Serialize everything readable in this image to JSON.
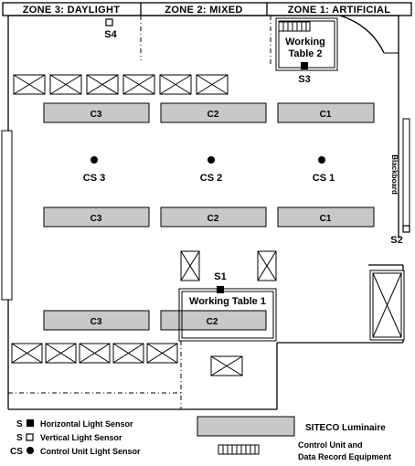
{
  "zones": {
    "zone3": "ZONE 3: DAYLIGHT",
    "zone2": "ZONE 2: MIXED",
    "zone1": "ZONE 1: ARTIFICIAL"
  },
  "luminaires": {
    "row1": [
      "C3",
      "C2",
      "C1"
    ],
    "row2": [
      "C3",
      "C2",
      "C1"
    ],
    "row3": [
      "C3",
      "C2"
    ]
  },
  "control_sensors": [
    "CS 3",
    "CS 2",
    "CS 1"
  ],
  "sensors": {
    "s1": "S1",
    "s2": "S2",
    "s3": "S3",
    "s4": "S4"
  },
  "tables": {
    "table1": "Working Table 1",
    "table2_line1": "Working",
    "table2_line2": "Table 2"
  },
  "blackboard": "Blackboard",
  "legend": {
    "horizontal_prefix": "S",
    "horizontal": "Horizontal Light Sensor",
    "vertical_prefix": "S",
    "vertical": "Vertical Light Sensor",
    "control_prefix": "CS",
    "control": "Control Unit Light Sensor",
    "luminaire": "SITECO Luminaire",
    "equipment_line1": "Control Unit and",
    "equipment_line2": "Data Record Equipment"
  }
}
